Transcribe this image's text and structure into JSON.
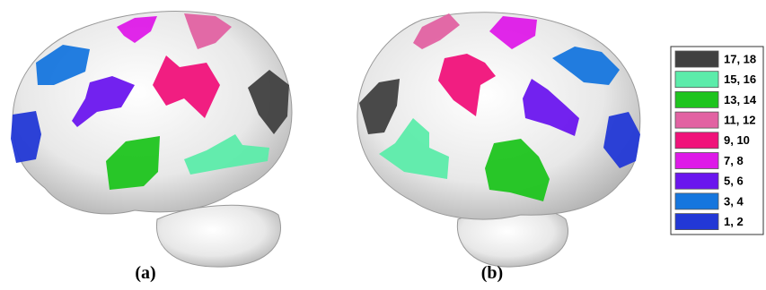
{
  "panels": [
    {
      "label": "(a)"
    },
    {
      "label": "(b)"
    }
  ],
  "legend": [
    {
      "label": "17, 18",
      "color": "#404040"
    },
    {
      "label": "15, 16",
      "color": "#5cecaa"
    },
    {
      "label": "13, 14",
      "color": "#1ec41e"
    },
    {
      "label": "11, 12",
      "color": "#e262a2"
    },
    {
      "label": "9, 10",
      "color": "#f0127a"
    },
    {
      "label": "7, 8",
      "color": "#de1ae8"
    },
    {
      "label": "5, 6",
      "color": "#6a16ee"
    },
    {
      "label": "3, 4",
      "color": "#1676de"
    },
    {
      "label": "1, 2",
      "color": "#2238d6"
    }
  ]
}
